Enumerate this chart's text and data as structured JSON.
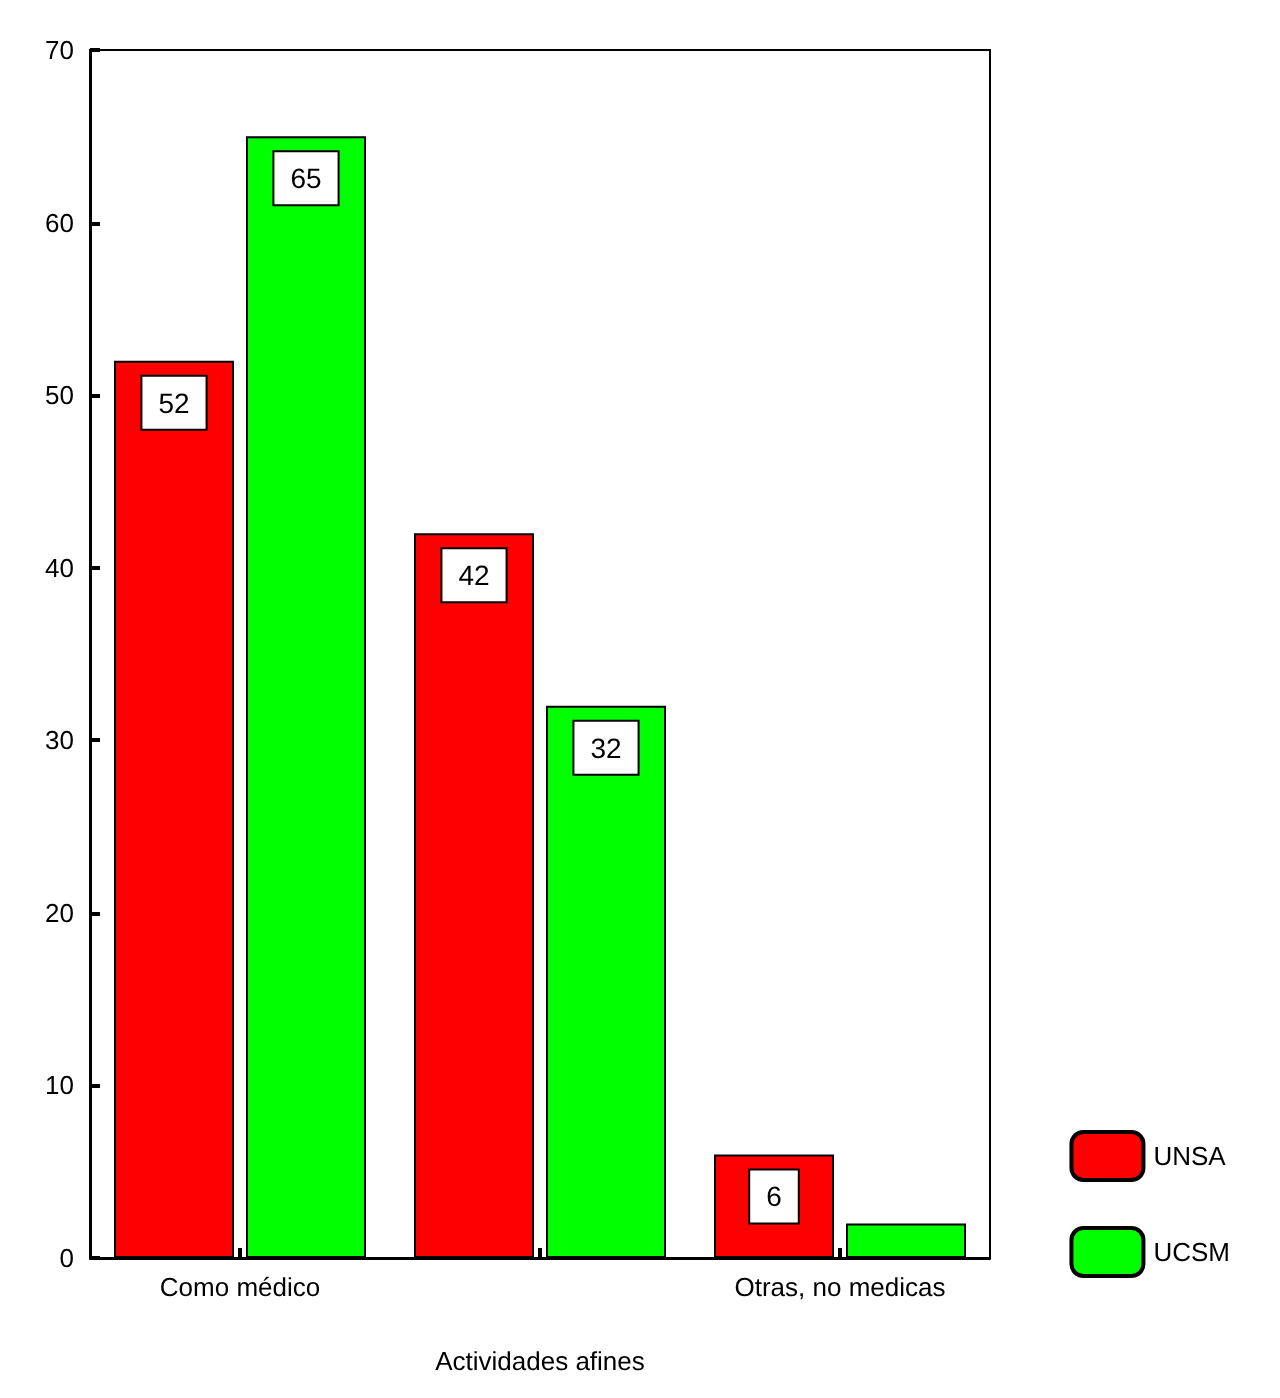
{
  "chart_data": {
    "type": "bar",
    "categories": [
      "Como médico",
      null,
      "Otras, no medicas"
    ],
    "xlabel": "Actividades afines",
    "series": [
      {
        "name": "UNSA",
        "color": "#ff0000",
        "values": [
          52,
          42,
          6
        ],
        "value_labels": [
          "52",
          "42",
          "6"
        ]
      },
      {
        "name": "UCSM",
        "color": "#00ff00",
        "values": [
          65,
          32,
          2
        ],
        "value_labels": [
          "65",
          "32",
          null
        ]
      }
    ],
    "ylim": [
      0,
      70
    ],
    "yticks": [
      0,
      10,
      20,
      30,
      40,
      50,
      60,
      70
    ],
    "grid": false,
    "legend": "bottom right"
  }
}
